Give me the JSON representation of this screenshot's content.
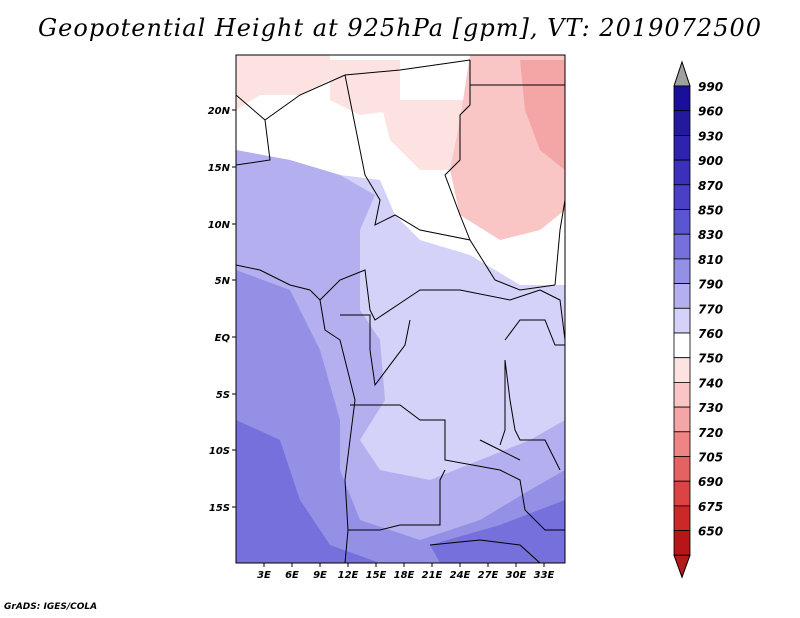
{
  "title": "Geopotential Height at 925hPa [gpm], VT: 2019072500",
  "credit": "GrADS: IGES/COLA",
  "map": {
    "lon_ticks": [
      "3E",
      "6E",
      "9E",
      "12E",
      "15E",
      "18E",
      "21E",
      "24E",
      "27E",
      "30E",
      "33E"
    ],
    "lat_ticks": [
      "20N",
      "15N",
      "10N",
      "5N",
      "EQ",
      "5S",
      "10S",
      "15S"
    ]
  },
  "colorbar": {
    "levels": [
      "990",
      "960",
      "930",
      "900",
      "870",
      "850",
      "830",
      "810",
      "790",
      "770",
      "760",
      "750",
      "740",
      "730",
      "720",
      "705",
      "690",
      "675",
      "650"
    ],
    "colors": [
      "#1a0f9c",
      "#24189e",
      "#2e22b0",
      "#3a30bd",
      "#4a40c8",
      "#5c55d2",
      "#7670dc",
      "#9490e6",
      "#b4b0ef",
      "#d4d2f8",
      "#ffffff",
      "#fde2e2",
      "#f9c5c5",
      "#f4a5a5",
      "#ee8484",
      "#e66262",
      "#dc4343",
      "#cc2828",
      "#b81616"
    ],
    "top_arrow_color": "#a0a0a0",
    "bottom_arrow_color": "#b51a1a"
  }
}
